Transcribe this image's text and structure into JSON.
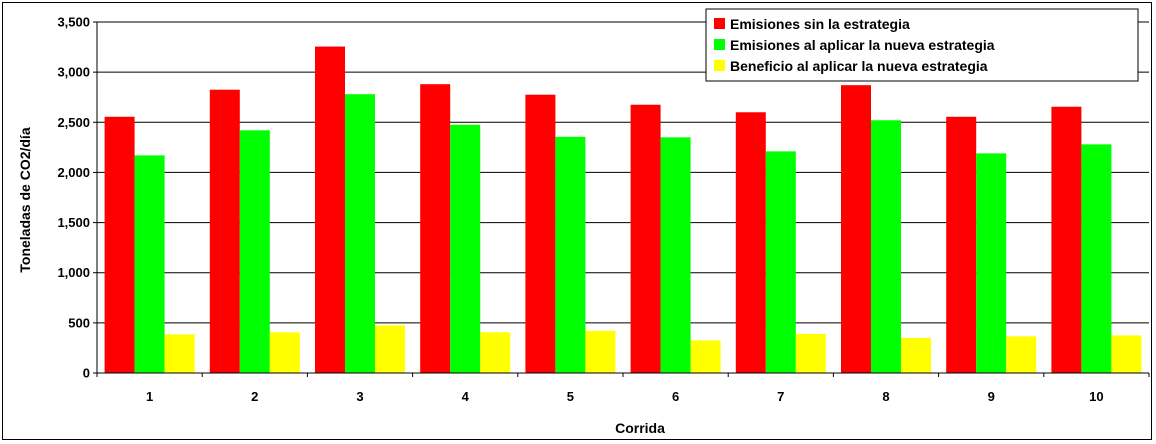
{
  "chart_data": {
    "type": "bar",
    "title": "",
    "xlabel": "Corrida",
    "ylabel": "Toneladas de CO2/día",
    "categories": [
      "1",
      "2",
      "3",
      "4",
      "5",
      "6",
      "7",
      "8",
      "9",
      "10"
    ],
    "ylim": [
      0,
      3500
    ],
    "yticks": [
      "0",
      "500",
      "1,000",
      "1,500",
      "2,000",
      "2,500",
      "3,000",
      "3,500"
    ],
    "grid": true,
    "legend_position": "top-right",
    "series": [
      {
        "name": "Emisiones sin la estrategia",
        "color": "#ff0000",
        "values": [
          2555,
          2825,
          3255,
          2880,
          2775,
          2675,
          2600,
          2870,
          2555,
          2655
        ]
      },
      {
        "name": "Emisiones al aplicar la nueva estrategia",
        "color": "#00ff00",
        "values": [
          2170,
          2420,
          2780,
          2475,
          2355,
          2350,
          2210,
          2520,
          2190,
          2280
        ]
      },
      {
        "name": "Beneficio al aplicar la nueva estrategia",
        "color": "#ffff00",
        "values": [
          385,
          405,
          475,
          405,
          420,
          325,
          390,
          350,
          365,
          375
        ]
      }
    ]
  }
}
